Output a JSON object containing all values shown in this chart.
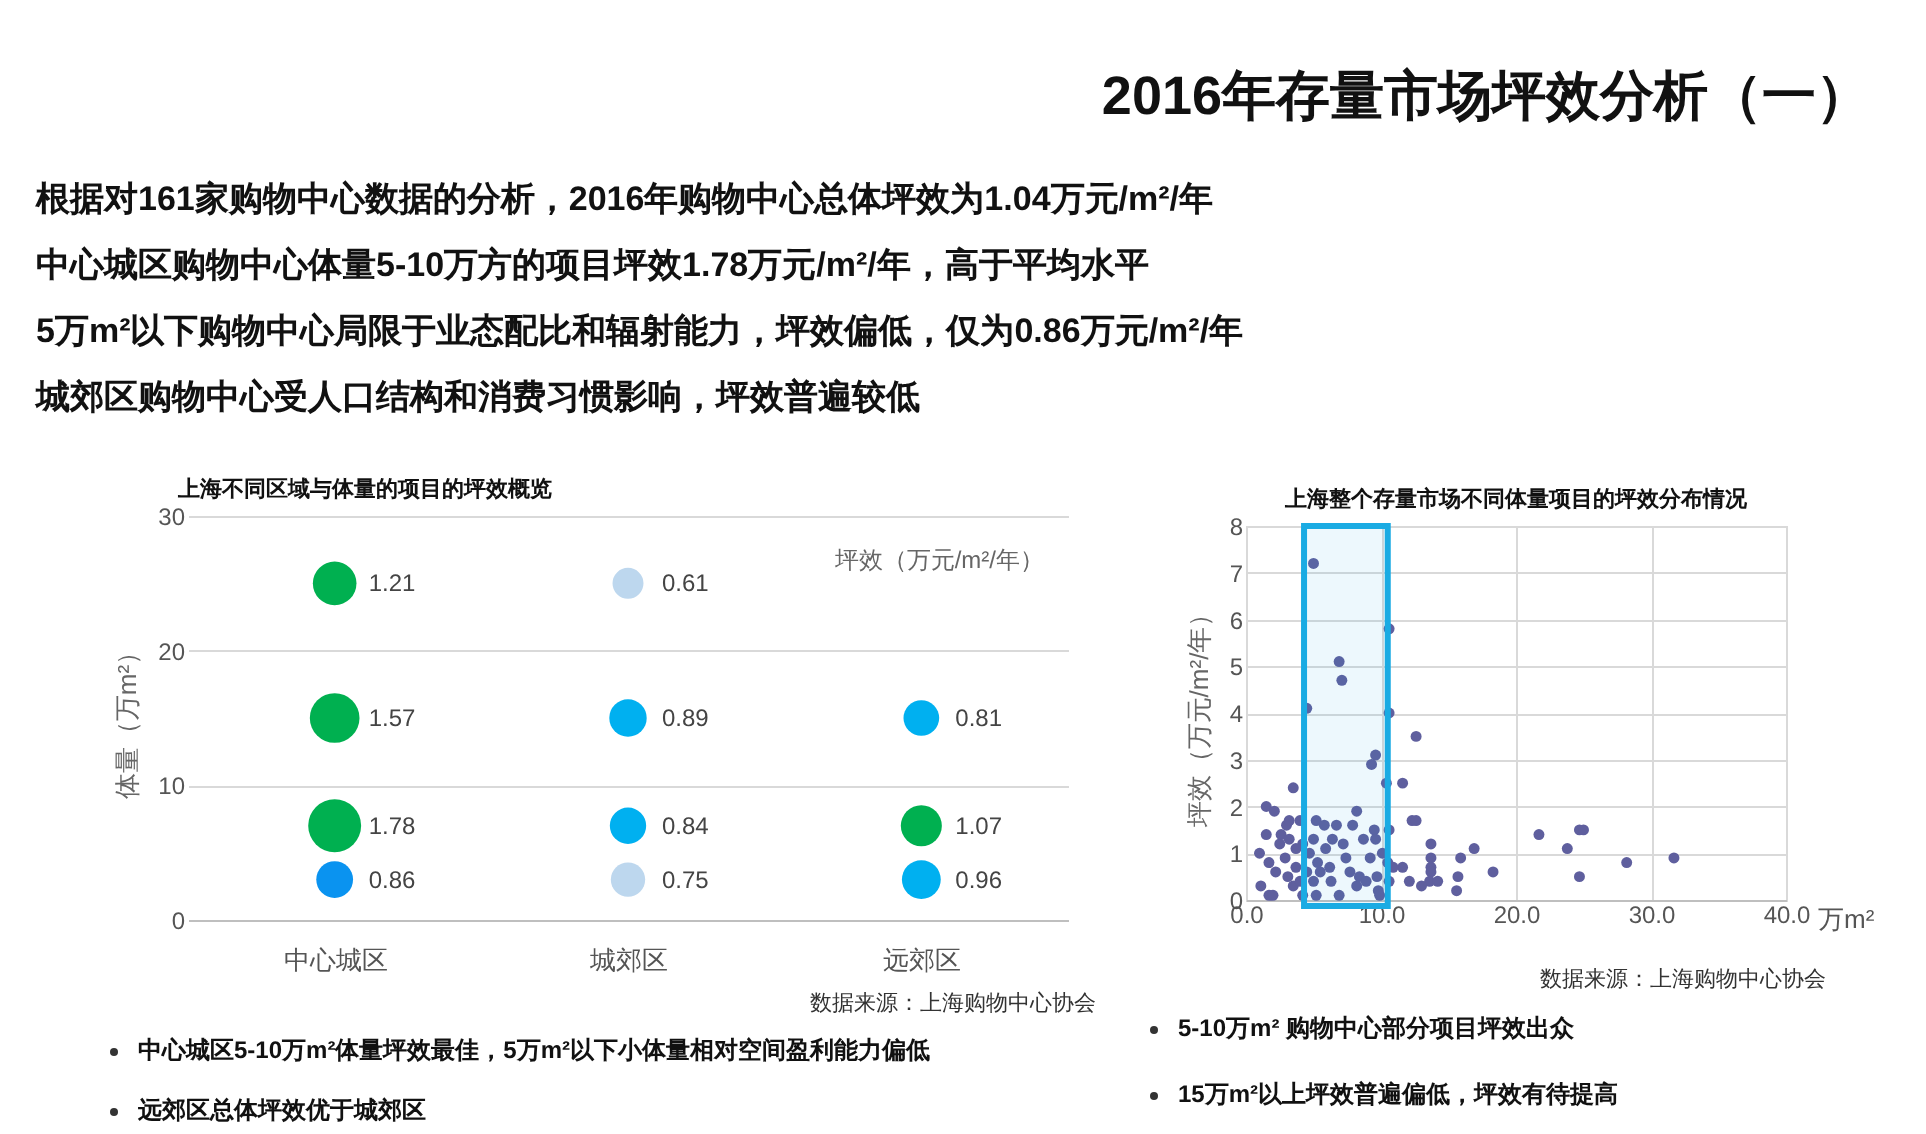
{
  "chart_data": [
    {
      "type": "other",
      "title": "2016年存量市场坪效分析（一）",
      "annotations": [
        "根据对161家购物中心数据的分析，2016年购物中心总体坪效为1.04万元/m²/年",
        "中心城区购物中心体量5-10万方的项目坪效1.78万元/m²/年，高于平均水平",
        "5万m²以下购物中心局限于业态配比和辐射能力，坪效偏低，仅为0.86万元/m²/年",
        "城郊区购物中心受人口结构和消费习惯影响，坪效普遍较低"
      ]
    },
    {
      "type": "bubble",
      "title": "上海不同区域与体量的项目的坪效概览",
      "ylabel": "体量（万m²）",
      "categories": [
        "中心城区",
        "城郊区",
        "远郊区"
      ],
      "ylim": [
        0,
        30
      ],
      "yticks": [
        0,
        10,
        20,
        30
      ],
      "grid": "y",
      "series": [
        {
          "values": [
            25,
            25,
            null
          ],
          "sizes": [
            1.21,
            0.61,
            null
          ],
          "value_labels": [
            "1.21",
            "0.61",
            null
          ],
          "colors": [
            "#00b050",
            "#bdd7ee",
            null
          ]
        },
        {
          "values": [
            15,
            15,
            15
          ],
          "sizes": [
            1.57,
            0.89,
            0.81
          ],
          "value_labels": [
            "1.57",
            "0.89",
            "0.81"
          ],
          "colors": [
            "#00b050",
            "#00b0f0",
            "#00b0f0"
          ]
        },
        {
          "values": [
            7,
            7,
            7
          ],
          "sizes": [
            1.78,
            0.84,
            1.07
          ],
          "value_labels": [
            "1.78",
            "0.84",
            "1.07"
          ],
          "colors": [
            "#00b050",
            "#00b0f0",
            "#00b050"
          ]
        },
        {
          "values": [
            3,
            3,
            3
          ],
          "sizes": [
            0.86,
            0.75,
            0.96
          ],
          "value_labels": [
            "0.86",
            "0.75",
            "0.96"
          ],
          "colors": [
            "#0a93f0",
            "#bdd7ee",
            "#00b0f0"
          ]
        }
      ],
      "annotations": [
        "坪效（万元/m²/年）",
        "数据来源：上海购物中心协会",
        "中心城区5-10万m²体量坪效最佳，5万m²以下小体量相对空间盈利能力偏低",
        "远郊区总体坪效优于城郊区"
      ]
    },
    {
      "type": "scatter",
      "title": "上海整个存量市场不同体量项目的坪效分布情况",
      "xlabel": "万m²",
      "ylabel": "坪效（万元/m²/年）",
      "xlim": [
        0,
        40
      ],
      "xticks": [
        {
          "value": 0,
          "label": "0.0"
        },
        {
          "value": 10,
          "label": "10.0"
        },
        {
          "value": 20,
          "label": "20.0"
        },
        {
          "value": 30,
          "label": "30.0"
        },
        {
          "value": 40,
          "label": "40.0"
        }
      ],
      "ylim": [
        0,
        8
      ],
      "yticks": [
        0,
        1,
        2,
        3,
        4,
        5,
        6,
        7,
        8
      ],
      "grid": true,
      "marker": "circle",
      "bands": [
        {
          "axis": "x",
          "from": 4.3,
          "to": 10.5,
          "color": "#1aabe3"
        }
      ],
      "series": [
        {
          "color": "#5f5f9e",
          "x": [
            5.0,
            6.9,
            7.1,
            4.5,
            10.6,
            10.6,
            12.6,
            9.6,
            9.3,
            10.4,
            11.6,
            3.5,
            1.5,
            2.1,
            8.2,
            12.3,
            12.6,
            10.6,
            21.7,
            23.8,
            24.7,
            25.0,
            16.9,
            13.7,
            28.2,
            31.7,
            24.7,
            18.3,
            15.9,
            15.7,
            15.6,
            13.7,
            13.7,
            13.7,
            13.6,
            14.2,
            13.0,
            12.1,
            11.6,
            10.9,
            9.8,
            1.0,
            1.5,
            1.1,
            1.7,
            2.0,
            2.2,
            1.7,
            2.5,
            2.6,
            3.0,
            3.2,
            2.9,
            3.1,
            3.5,
            3.7,
            3.2,
            4.0,
            4.2,
            3.7,
            4.0,
            4.2,
            4.5,
            4.7,
            5.0,
            5.0,
            5.2,
            5.3,
            5.5,
            5.2,
            5.8,
            5.9,
            6.2,
            6.4,
            6.3,
            6.7,
            6.9,
            7.2,
            7.4,
            7.7,
            7.9,
            8.2,
            8.4,
            8.7,
            8.9,
            9.2,
            9.5,
            9.6,
            9.9,
            9.7,
            10.6,
            10.5,
            10.1
          ],
          "values": [
            7.2,
            5.1,
            4.7,
            4.1,
            5.8,
            4.0,
            3.5,
            3.1,
            2.9,
            2.5,
            2.5,
            2.4,
            2.0,
            1.9,
            1.9,
            1.7,
            1.7,
            1.5,
            1.4,
            1.1,
            1.5,
            1.5,
            1.1,
            1.2,
            0.8,
            0.9,
            0.5,
            0.6,
            0.9,
            0.5,
            0.2,
            0.9,
            0.7,
            0.6,
            0.4,
            0.4,
            0.3,
            0.4,
            0.7,
            0.7,
            0.2,
            1.0,
            1.4,
            0.3,
            0.1,
            0.1,
            0.6,
            0.8,
            1.2,
            1.4,
            1.6,
            1.3,
            0.9,
            0.5,
            0.3,
            0.7,
            1.7,
            1.7,
            1.2,
            1.1,
            0.4,
            0.1,
            0.6,
            1.0,
            1.3,
            0.4,
            1.7,
            0.8,
            0.6,
            0.1,
            1.6,
            1.1,
            0.7,
            1.3,
            0.4,
            1.6,
            0.1,
            1.2,
            0.9,
            0.6,
            1.6,
            0.3,
            0.5,
            1.3,
            0.4,
            0.9,
            1.5,
            1.3,
            0.1,
            0.5,
            0.4,
            0.8,
            1.0
          ]
        }
      ],
      "annotations": [
        "数据来源：上海购物中心协会",
        "5-10万m² 购物中心部分项目坪效出众",
        "15万m²以上坪效普遍偏低，坪效有待提高"
      ]
    }
  ]
}
